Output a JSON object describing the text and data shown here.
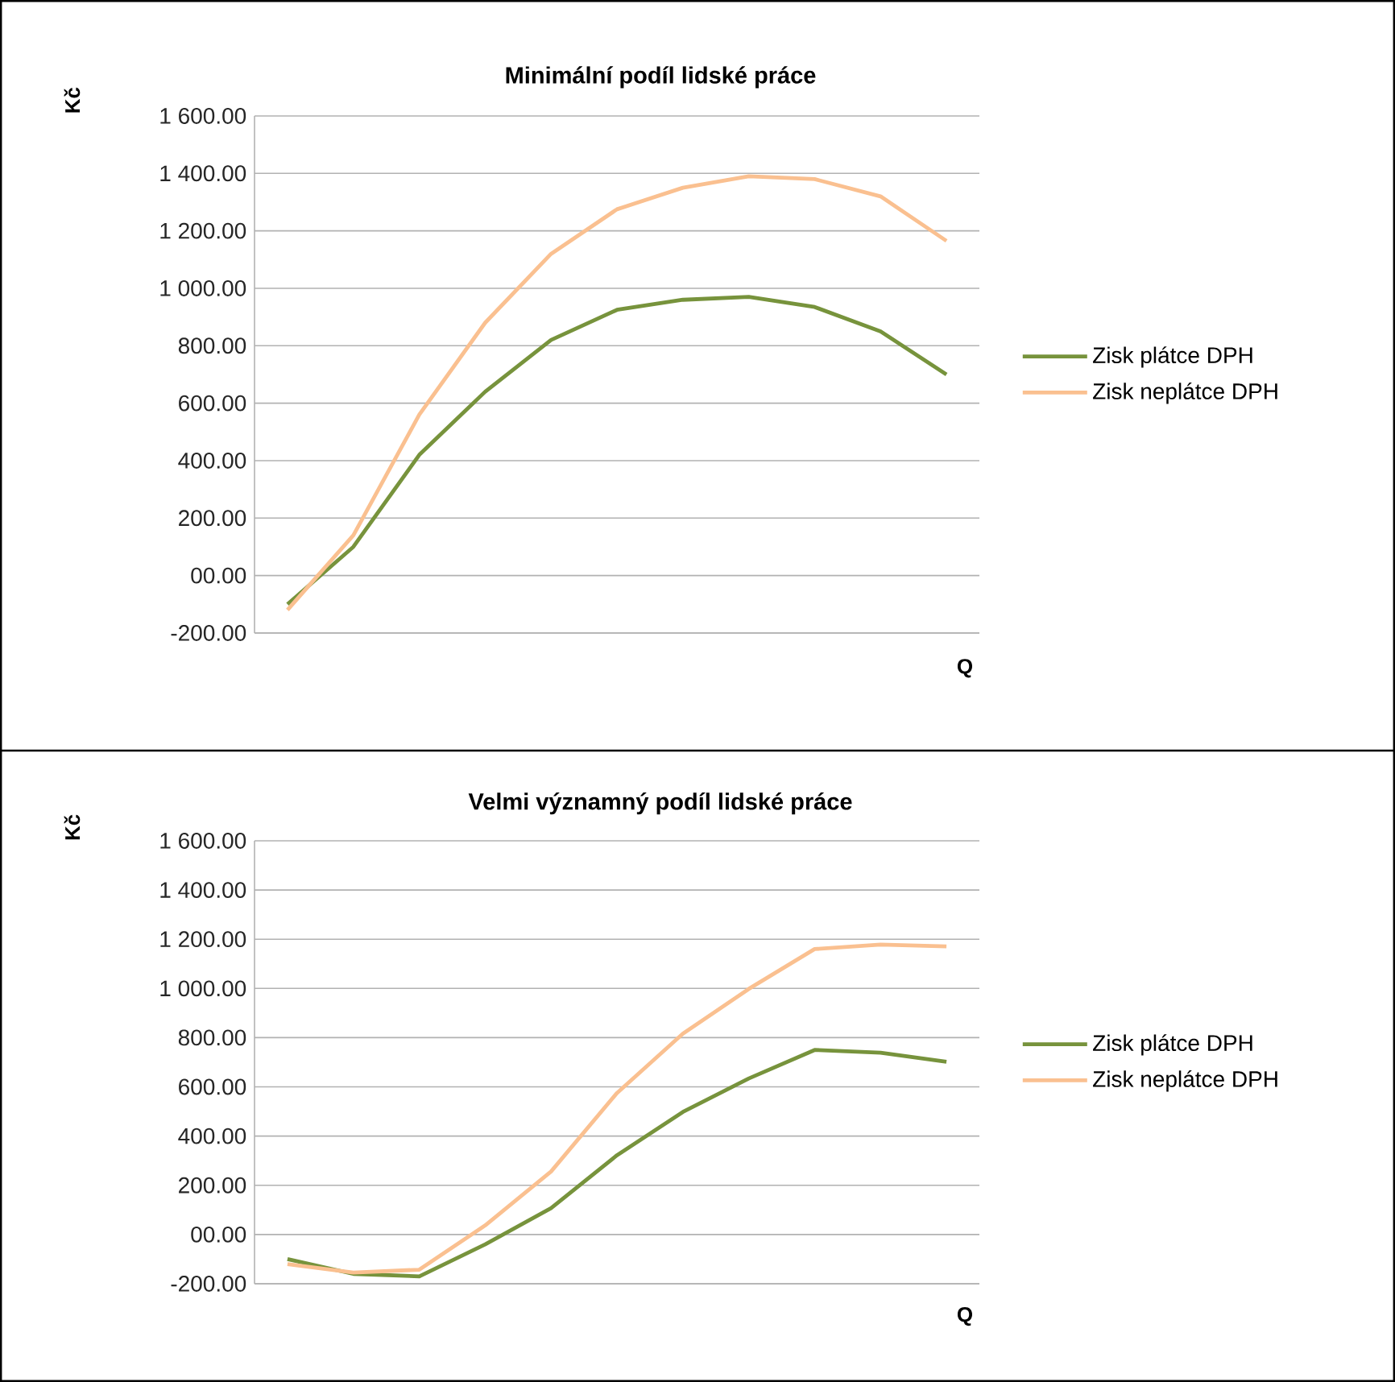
{
  "chart_data": [
    {
      "type": "line",
      "title": "Minimální podíl lidské práce",
      "ylabel": "Kč",
      "xlabel": "Q",
      "categories": [
        null,
        null,
        null,
        null,
        null,
        null,
        null,
        null,
        null,
        null,
        null
      ],
      "series": [
        {
          "name": "Zisk plátce DPH",
          "color": "#77933c",
          "values": [
            -100,
            100,
            420,
            640,
            820,
            925,
            960,
            970,
            935,
            850,
            700
          ]
        },
        {
          "name": "Zisk neplátce DPH",
          "color": "#fac090",
          "values": [
            -120,
            140,
            560,
            880,
            1120,
            1275,
            1350,
            1390,
            1380,
            1320,
            1165
          ]
        }
      ],
      "ylim": [
        -200,
        1600
      ],
      "yticks": [
        {
          "value": -200,
          "label": "-200.00"
        },
        {
          "value": 0,
          "label": "00.00"
        },
        {
          "value": 200,
          "label": "200.00"
        },
        {
          "value": 400,
          "label": "400.00"
        },
        {
          "value": 600,
          "label": "600.00"
        },
        {
          "value": 800,
          "label": "800.00"
        },
        {
          "value": 1000,
          "label": "1 000.00"
        },
        {
          "value": 1200,
          "label": "1 200.00"
        },
        {
          "value": 1400,
          "label": "1 400.00"
        },
        {
          "value": 1600,
          "label": "1 600.00"
        }
      ],
      "grid": "y",
      "legend": "right",
      "marker": "none",
      "line_style": "solid"
    },
    {
      "type": "line",
      "title": "Velmi významný podíl lidské práce",
      "ylabel": "Kč",
      "xlabel": "Q",
      "categories": [
        null,
        null,
        null,
        null,
        null,
        null,
        null,
        null,
        null,
        null,
        null
      ],
      "series": [
        {
          "name": "Zisk plátce DPH",
          "color": "#77933c",
          "values": [
            -100,
            -160,
            -170,
            -40,
            107,
            322,
            498,
            634,
            750,
            739,
            702
          ]
        },
        {
          "name": "Zisk neplátce DPH",
          "color": "#fac090",
          "values": [
            -120,
            -155,
            -143,
            37,
            256,
            575,
            816,
            998,
            1160,
            1178,
            1171
          ]
        }
      ],
      "ylim": [
        -200,
        1600
      ],
      "yticks": [
        {
          "value": -200,
          "label": "-200.00"
        },
        {
          "value": 0,
          "label": "00.00"
        },
        {
          "value": 200,
          "label": "200.00"
        },
        {
          "value": 400,
          "label": "400.00"
        },
        {
          "value": 600,
          "label": "600.00"
        },
        {
          "value": 800,
          "label": "800.00"
        },
        {
          "value": 1000,
          "label": "1 000.00"
        },
        {
          "value": 1200,
          "label": "1 200.00"
        },
        {
          "value": 1400,
          "label": "1 400.00"
        },
        {
          "value": 1600,
          "label": "1 600.00"
        }
      ],
      "grid": "y",
      "legend": "right",
      "marker": "none",
      "line_style": "solid"
    }
  ]
}
